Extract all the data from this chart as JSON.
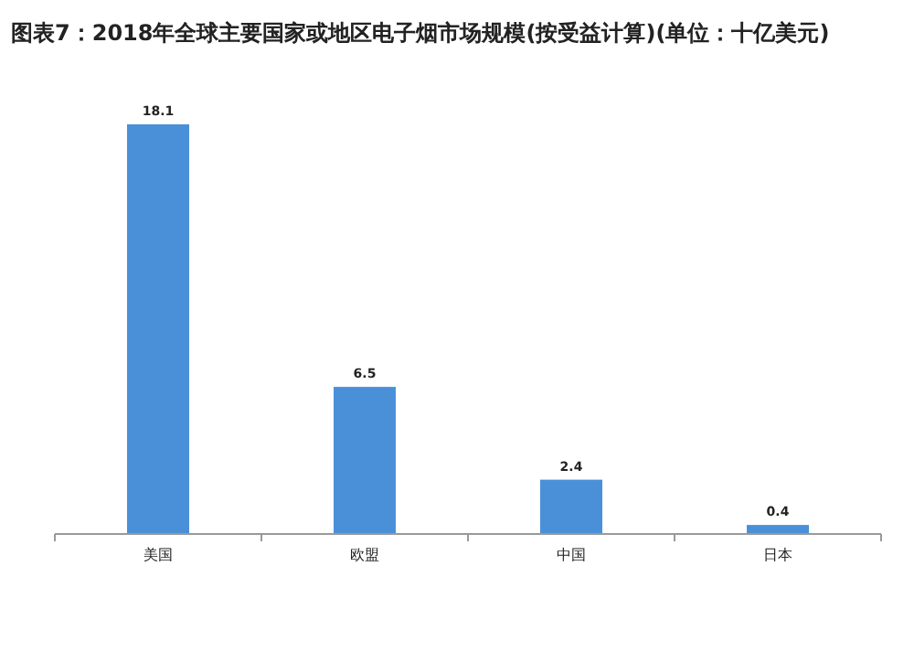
{
  "chart_data": {
    "type": "bar",
    "title": "图表7：2018年全球主要国家或地区电子烟市场规模(按受益计算)(单位：十亿美元)",
    "categories": [
      "美国",
      "欧盟",
      "中国",
      "日本"
    ],
    "values": [
      18.1,
      6.5,
      2.4,
      0.4
    ],
    "color": "#4a90d9",
    "data_labels": true
  }
}
